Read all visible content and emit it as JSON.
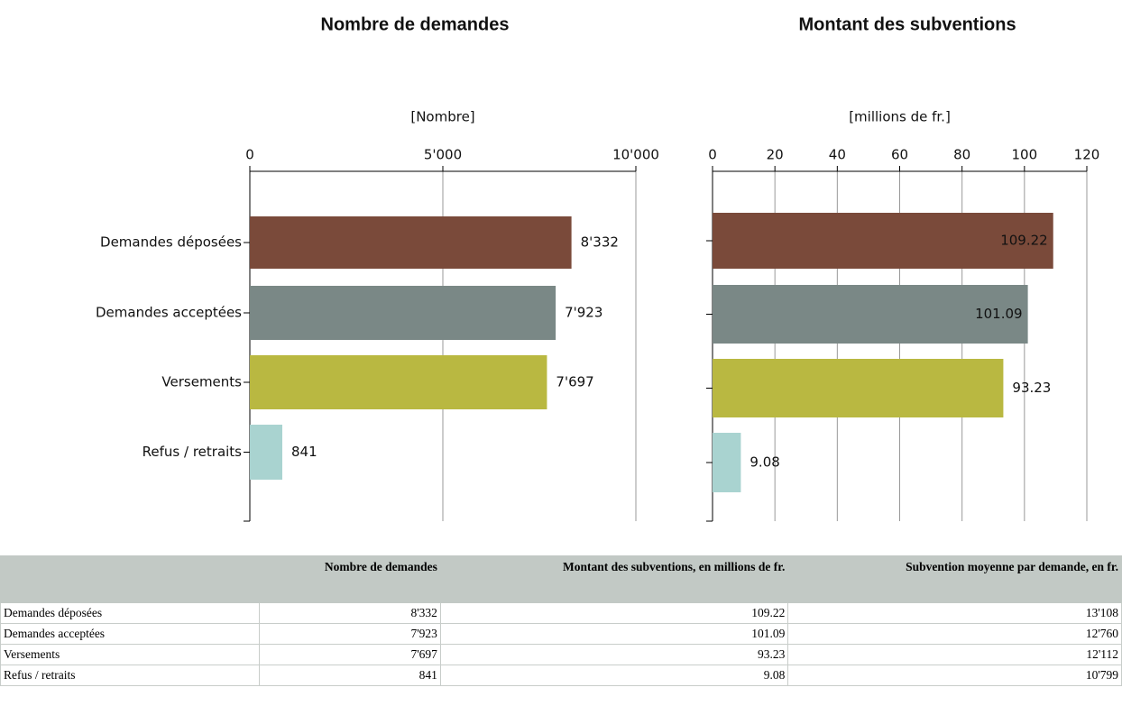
{
  "chart_data": [
    {
      "type": "barh",
      "title": "Nombre de demandes",
      "xlabel": "[Nombre]",
      "categories": [
        "Demandes déposées",
        "Demandes acceptées",
        "Versements",
        "Refus / retraits"
      ],
      "values": [
        8332,
        7923,
        7697,
        841
      ],
      "value_labels": [
        "8'332",
        "7'923",
        "7'697",
        "841"
      ],
      "colors": [
        "#7a4a3a",
        "#7a8886",
        "#b9b841",
        "#a9d3d0"
      ],
      "xlim": [
        0,
        10000
      ],
      "xticks": [
        0,
        {
          "value": 5000,
          "label": "5'000"
        },
        {
          "value": 10000,
          "label": "10'000"
        }
      ],
      "grid": true
    },
    {
      "type": "barh",
      "title": "Montant des subventions",
      "xlabel": "[millions de fr.]",
      "values": [
        109.22,
        101.09,
        93.23,
        9.08
      ],
      "colors": [
        "#7a4a3a",
        "#7a8886",
        "#b9b841",
        "#a9d3d0"
      ],
      "xlim": [
        0,
        120
      ],
      "xticks": [
        0,
        20,
        40,
        60,
        80,
        100,
        120
      ],
      "grid": true
    }
  ],
  "table": {
    "header": [
      "Nombre de demandes",
      "Montant des subventions, en millions de fr.",
      "Subvention moyenne par demande, en fr."
    ],
    "rows": [
      [
        "Demandes déposées",
        "8'332",
        "109.22",
        "13'108"
      ],
      [
        "Demandes acceptées",
        "7'923",
        "101.09",
        "12'760"
      ],
      [
        "Versements",
        "7'697",
        "93.23",
        "12'112"
      ],
      [
        "Refus / retraits",
        "841",
        "9.08",
        "10'799"
      ]
    ]
  }
}
